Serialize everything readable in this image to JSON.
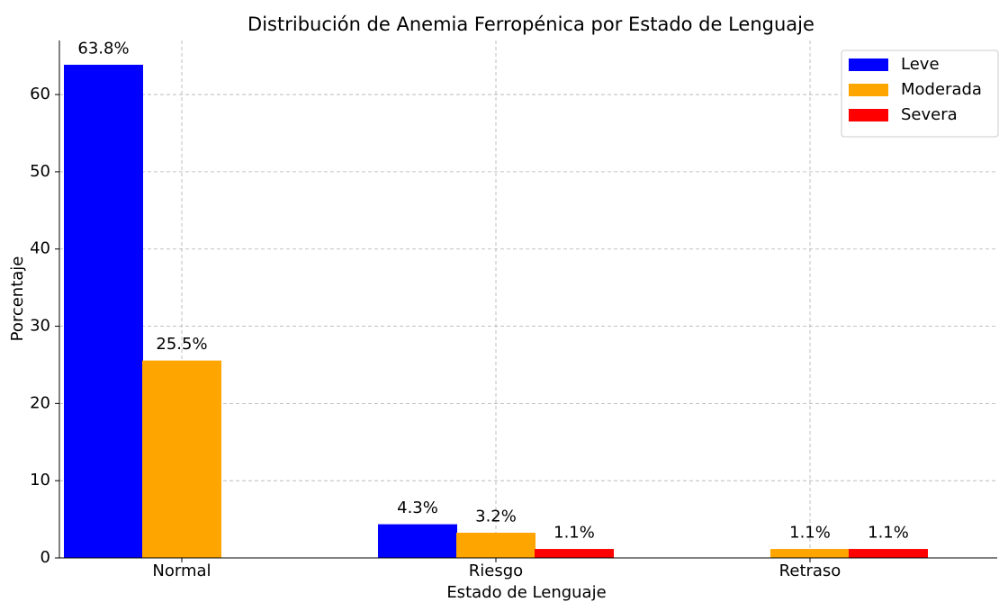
{
  "chart_data": {
    "type": "bar",
    "title": "Distribución de Anemia Ferropénica por Estado de Lenguaje",
    "x_label": "Estado de Lenguaje",
    "y_label": "Porcentaje",
    "categories": [
      "Normal",
      "Riesgo",
      "Retraso"
    ],
    "series": [
      {
        "name": "Leve",
        "color": "#0000ff",
        "values": [
          63.8,
          4.3,
          null
        ],
        "value_labels": [
          "63.8%",
          "4.3%",
          null
        ]
      },
      {
        "name": "Moderada",
        "color": "#ffa500",
        "values": [
          25.5,
          3.2,
          1.1
        ],
        "value_labels": [
          "25.5%",
          "3.2%",
          "1.1%"
        ]
      },
      {
        "name": "Severa",
        "color": "#ff0000",
        "values": [
          null,
          1.1,
          1.1
        ],
        "value_labels": [
          null,
          "1.1%",
          "1.1%"
        ]
      }
    ],
    "ylim": [
      0,
      67
    ],
    "yticks": [
      0,
      10,
      20,
      30,
      40,
      50,
      60
    ],
    "grid": true,
    "legend": "upper right"
  }
}
